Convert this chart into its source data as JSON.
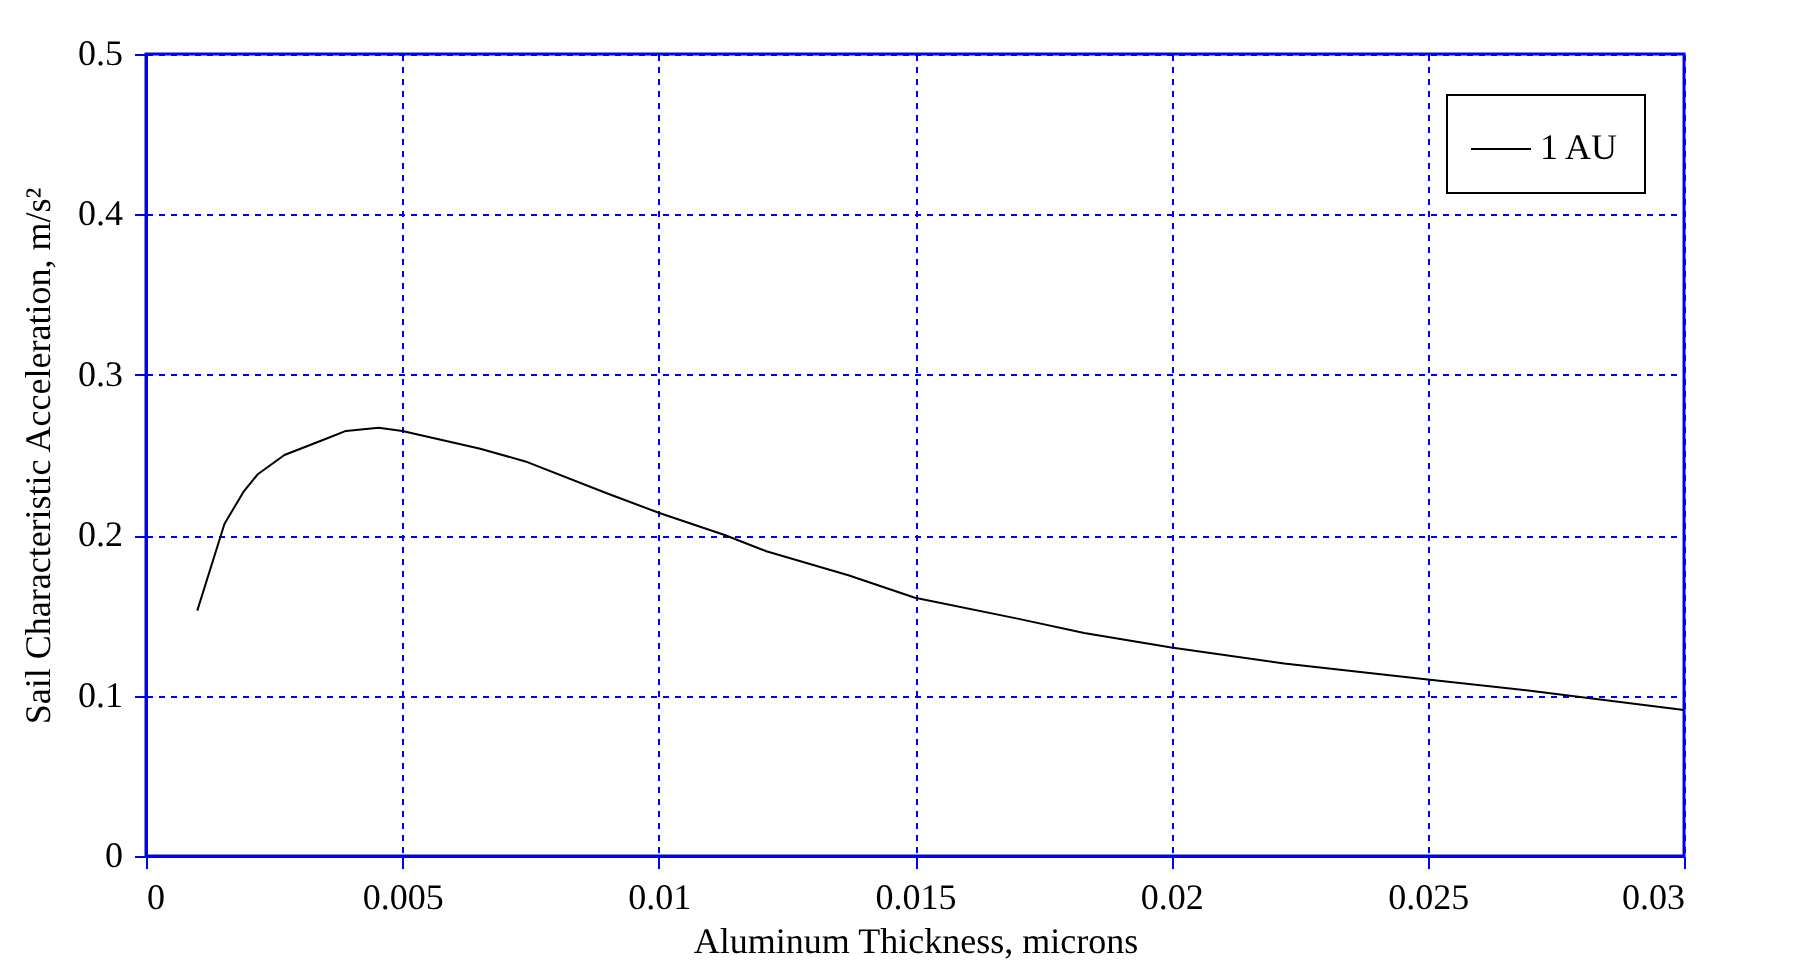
{
  "chart_data": {
    "type": "line",
    "xlabel": "Aluminum Thickness, microns",
    "ylabel": "Sail Characteristic Acceleration, m/s²",
    "x": [
      0.001,
      0.00153,
      0.0019,
      0.00218,
      0.0027,
      0.0035,
      0.0039,
      0.00454,
      0.005,
      0.0065,
      0.0074,
      0.009,
      0.01,
      0.0113,
      0.0121,
      0.0137,
      0.015,
      0.017,
      0.0183,
      0.02,
      0.0222,
      0.025,
      0.027,
      0.03
    ],
    "series": [
      {
        "name": "1 AU",
        "color": "#000000",
        "values": [
          0.153,
          0.207,
          0.227,
          0.238,
          0.25,
          0.26,
          0.265,
          0.267,
          0.265,
          0.254,
          0.246,
          0.226,
          0.214,
          0.2,
          0.19,
          0.175,
          0.161,
          0.148,
          0.139,
          0.13,
          0.12,
          0.11,
          0.103,
          0.091
        ]
      }
    ],
    "xlim": [
      0,
      0.03
    ],
    "xticks": [
      0,
      0.005,
      0.01,
      0.015,
      0.02,
      0.025,
      0.03
    ],
    "ylim": [
      0,
      0.5
    ],
    "yticks": [
      0,
      0.1,
      0.2,
      0.3,
      0.4,
      0.5
    ],
    "grid": true,
    "legend": "top right",
    "marker": "none",
    "line_style": "solid"
  }
}
